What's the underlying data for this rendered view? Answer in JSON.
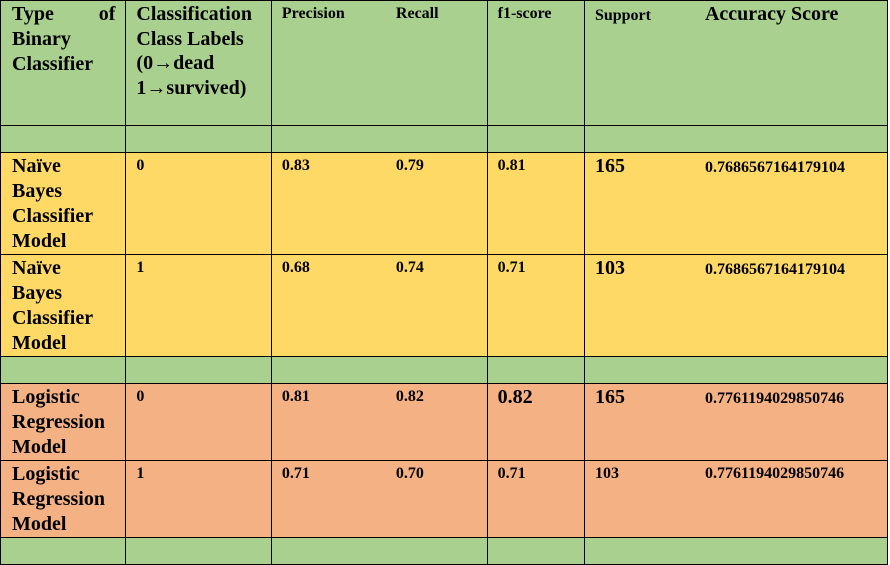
{
  "headers": {
    "type_word1": "Type",
    "type_word2": "of",
    "type_rest": [
      "Binary",
      "Classifier"
    ],
    "labels_lines": [
      "Classification",
      "Class Labels",
      "(0→dead",
      "1→survived)"
    ],
    "precision": "Precision",
    "recall": "Recall",
    "f1": "f1-score",
    "support": "Support",
    "accuracy": "Accuracy Score"
  },
  "rows": [
    {
      "model_lines": [
        "Naïve",
        "Bayes",
        "Classifier",
        "Model"
      ],
      "label": "0",
      "precision": "0.83",
      "recall": "0.79",
      "f1": "0.81",
      "support": "165",
      "accuracy": "0.7686567164179104"
    },
    {
      "model_lines": [
        "Naïve",
        "Bayes",
        "Classifier",
        "Model"
      ],
      "label": "1",
      "precision": "0.68",
      "recall": "0.74",
      "f1": "0.71",
      "support": "103",
      "accuracy": "0.7686567164179104"
    },
    {
      "model_lines": [
        "Logistic",
        "Regression",
        "Model"
      ],
      "label": "0",
      "precision": "0.81",
      "recall": "0.82",
      "f1": "0.82",
      "support": "165",
      "accuracy": "0.7761194029850746"
    },
    {
      "model_lines": [
        "Logistic",
        "Regression",
        "Model"
      ],
      "label": "1",
      "precision": "0.71",
      "recall": "0.70",
      "f1": "0.71",
      "support": "103",
      "accuracy": "0.7761194029850746"
    }
  ],
  "colors": {
    "header_green": "#a9d08e",
    "naive_bayes_yellow": "#ffd966",
    "logistic_orange": "#f4b183"
  }
}
